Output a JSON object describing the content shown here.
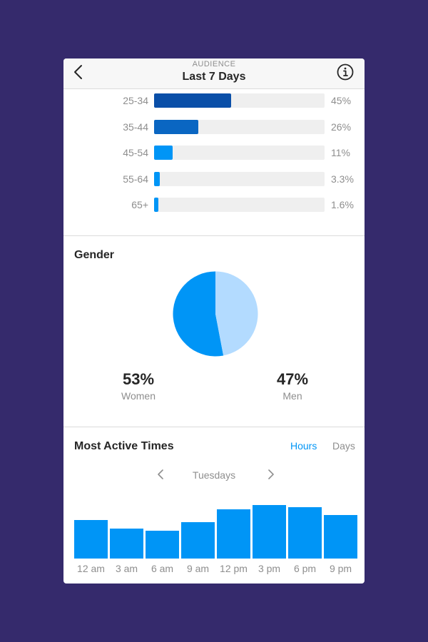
{
  "header": {
    "subtitle": "AUDIENCE",
    "title": "Last 7 Days",
    "back_icon": "chevron-left-icon",
    "info_icon": "info-icon"
  },
  "age": {
    "rows": [
      {
        "label": "25-34",
        "pct_text": "45%",
        "value": 45,
        "color": "#0a4fa8"
      },
      {
        "label": "35-44",
        "pct_text": "26%",
        "value": 26,
        "color": "#0a66c2"
      },
      {
        "label": "45-54",
        "pct_text": "11%",
        "value": 11,
        "color": "#0095f6"
      },
      {
        "label": "55-64",
        "pct_text": "3.3%",
        "value": 3.3,
        "color": "#0095f6"
      },
      {
        "label": "65+",
        "pct_text": "1.6%",
        "value": 1.6,
        "color": "#0095f6"
      }
    ]
  },
  "gender": {
    "title": "Gender",
    "women": {
      "value_text": "53%",
      "label": "Women",
      "value": 53,
      "color": "#0095f6"
    },
    "men": {
      "value_text": "47%",
      "label": "Men",
      "value": 47,
      "color": "#b3dbff"
    }
  },
  "active_times": {
    "title": "Most Active Times",
    "tabs": [
      {
        "label": "Hours",
        "active": true
      },
      {
        "label": "Days",
        "active": false
      }
    ],
    "day": "Tuesdays",
    "bar_color": "#0095f6",
    "chart_data": {
      "type": "bar",
      "categories": [
        "12 am",
        "3 am",
        "6 am",
        "9 am",
        "12 pm",
        "3 pm",
        "6 pm",
        "9 pm"
      ],
      "values": [
        54,
        42,
        39,
        51,
        69,
        75,
        72,
        61
      ],
      "ylim": [
        0,
        86
      ],
      "title": "",
      "xlabel": "",
      "ylabel": ""
    }
  }
}
